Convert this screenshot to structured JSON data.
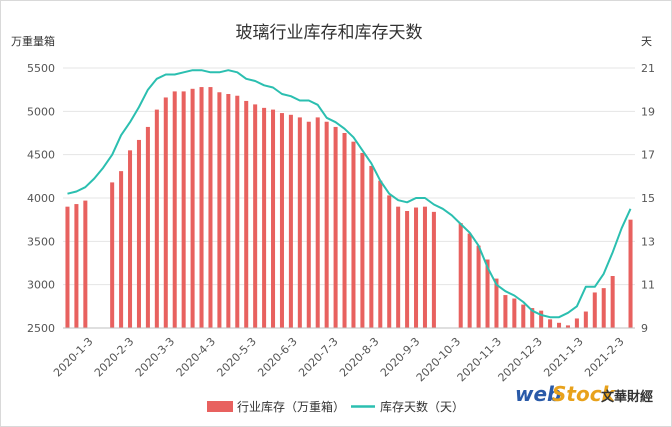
{
  "chart_data": {
    "type": "bar+line",
    "title": "玻璃行业库存和库存天数",
    "left_unit": "万重量箱",
    "right_unit": "天",
    "left_axis": {
      "min": 2500,
      "max": 5500,
      "ticks": [
        2500,
        3000,
        3500,
        4000,
        4500,
        5000,
        5500
      ]
    },
    "right_axis": {
      "min": 9,
      "max": 21,
      "ticks": [
        9,
        11,
        13,
        15,
        17,
        19,
        21
      ]
    },
    "grid": true,
    "legend_position": "bottom",
    "x_tick_labels": [
      "2020-1-3",
      "2020-2-3",
      "2020-3-3",
      "2020-4-3",
      "2020-5-3",
      "2020-6-3",
      "2020-7-3",
      "2020-8-3",
      "2020-9-3",
      "2020-10-3",
      "2020-11-3",
      "2020-12-3",
      "2021-1-3",
      "2021-2-3"
    ],
    "series": [
      {
        "name": "行业库存（万重箱）",
        "type": "bar",
        "color": "#e8615f",
        "axis": "left",
        "values": [
          3900,
          3930,
          3970,
          null,
          null,
          4180,
          4310,
          4550,
          4670,
          4820,
          5020,
          5160,
          5230,
          5230,
          5260,
          5280,
          5280,
          5220,
          5200,
          5180,
          5120,
          5080,
          5040,
          5020,
          4980,
          4960,
          4930,
          4880,
          4930,
          4880,
          4820,
          4750,
          4650,
          4520,
          4370,
          4200,
          4030,
          3900,
          3850,
          3890,
          3900,
          3840,
          null,
          null,
          3710,
          3590,
          3450,
          3290,
          3070,
          2880,
          2840,
          2770,
          2730,
          2700,
          2600,
          2560,
          2530,
          2610,
          2690,
          2910,
          2960,
          3100,
          null,
          3750
        ]
      },
      {
        "name": "库存天数（天）",
        "type": "line",
        "color": "#2bbfb0",
        "axis": "right",
        "values": [
          15.2,
          15.3,
          15.5,
          15.9,
          16.4,
          17.0,
          17.9,
          18.5,
          19.2,
          20.0,
          20.5,
          20.7,
          20.7,
          20.8,
          20.9,
          20.9,
          20.8,
          20.8,
          20.9,
          20.8,
          20.5,
          20.4,
          20.2,
          20.1,
          19.8,
          19.7,
          19.5,
          19.5,
          19.3,
          18.7,
          18.5,
          18.2,
          17.8,
          17.2,
          16.6,
          15.8,
          15.2,
          14.9,
          14.8,
          15.0,
          15.0,
          14.7,
          14.5,
          14.2,
          13.8,
          13.4,
          12.8,
          11.8,
          11.0,
          10.7,
          10.5,
          10.2,
          9.8,
          9.6,
          9.5,
          9.5,
          9.7,
          10.0,
          10.9,
          10.9,
          11.5,
          12.5,
          13.6,
          14.5
        ]
      }
    ]
  },
  "watermark": {
    "web_text": "web",
    "stock_text": "Stock",
    "cn_text": "文華財經"
  },
  "colors": {
    "bar": "#e8615f",
    "line": "#2bbfb0",
    "grid": "#e5e5e5"
  }
}
